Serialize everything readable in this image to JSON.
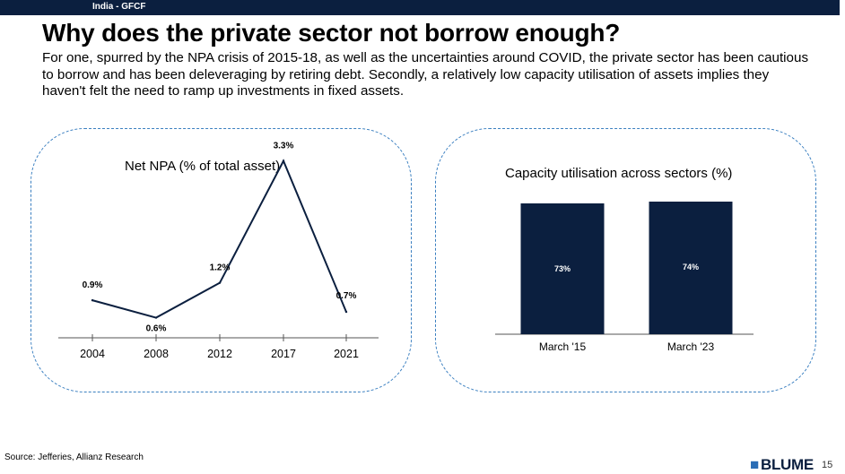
{
  "header": {
    "tag": "India - GFCF"
  },
  "title": "Why does the private sector not borrow enough?",
  "subtitle": "For one, spurred by the NPA crisis of 2015-18, as well as the uncertainties around COVID, the private sector has been cautious to borrow and has been deleveraging by retiring debt. Secondly, a relatively low capacity utilisation of assets implies they haven't felt the need to ramp up investments in fixed assets.",
  "colors": {
    "navy": "#0b1f3f",
    "accent": "#3a7fc0"
  },
  "chart_data": [
    {
      "type": "line",
      "title": "Net NPA (% of total asset)",
      "categories": [
        "2004",
        "2008",
        "2012",
        "2017",
        "2021"
      ],
      "values": [
        0.9,
        0.6,
        1.2,
        3.3,
        0.7
      ],
      "labels": [
        "0.9%",
        "0.6%",
        "1.2%",
        "3.3%",
        "0.7%"
      ],
      "xlabel": "",
      "ylabel": "",
      "ylim": [
        0,
        3.5
      ],
      "grid": false,
      "legend": "none"
    },
    {
      "type": "bar",
      "title": "Capacity utilisation across sectors (%)",
      "categories": [
        "March '15",
        "March '23"
      ],
      "values": [
        73,
        74
      ],
      "labels": [
        "73%",
        "74%"
      ],
      "xlabel": "",
      "ylabel": "",
      "ylim": [
        0,
        80
      ],
      "grid": false,
      "legend": "none"
    }
  ],
  "footer": {
    "source": "Source: Jefferies, Allianz Research",
    "logo_text": "BLUME",
    "page_number": "15"
  }
}
